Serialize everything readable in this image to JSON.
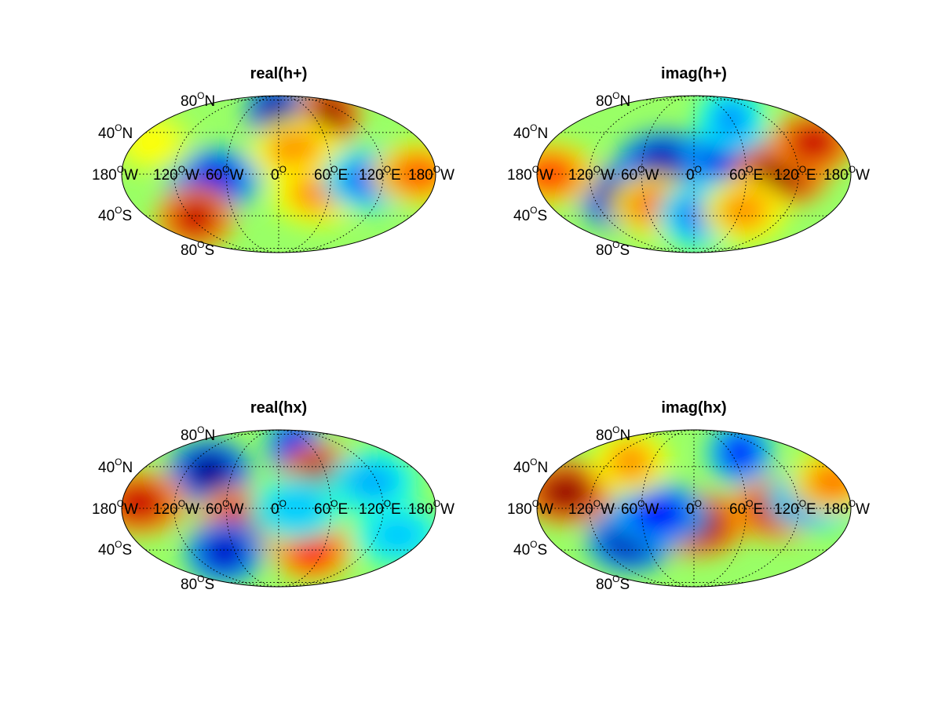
{
  "chart_data": [
    {
      "type": "heatmap",
      "projection": "mollweide",
      "title": "real(h+)",
      "colormap": "jet",
      "grid": true,
      "lat_labels": [
        {
          "deg": "80",
          "hemi": "N"
        },
        {
          "deg": "40",
          "hemi": "N"
        },
        {
          "deg": "40",
          "hemi": "S"
        },
        {
          "deg": "80",
          "hemi": "S"
        }
      ],
      "lon_labels": [
        {
          "deg": "180",
          "hemi": "W"
        },
        {
          "deg": "120",
          "hemi": "W"
        },
        {
          "deg": "60",
          "hemi": "W"
        },
        {
          "deg": "0",
          "hemi": ""
        },
        {
          "deg": "60",
          "hemi": "E"
        },
        {
          "deg": "120",
          "hemi": "E"
        },
        {
          "deg": "180",
          "hemi": "W"
        }
      ],
      "features": [
        {
          "lon": -5,
          "lat": 62,
          "v": -0.95
        },
        {
          "lon": 90,
          "lat": 60,
          "v": 0.95
        },
        {
          "lon": -75,
          "lat": -5,
          "v": -0.8
        },
        {
          "lon": -115,
          "lat": -42,
          "v": 0.85
        },
        {
          "lon": 20,
          "lat": 22,
          "v": 0.45
        },
        {
          "lon": 45,
          "lat": -18,
          "v": 0.45
        },
        {
          "lon": 105,
          "lat": -5,
          "v": -0.55
        },
        {
          "lon": 160,
          "lat": 0,
          "v": 0.55
        },
        {
          "lon": -160,
          "lat": 30,
          "v": 0.25
        }
      ]
    },
    {
      "type": "heatmap",
      "projection": "mollweide",
      "title": "imag(h+)",
      "colormap": "jet",
      "grid": true,
      "lat_labels": [
        {
          "deg": "80",
          "hemi": "N"
        },
        {
          "deg": "40",
          "hemi": "N"
        },
        {
          "deg": "40",
          "hemi": "S"
        },
        {
          "deg": "80",
          "hemi": "S"
        }
      ],
      "lon_labels": [
        {
          "deg": "180",
          "hemi": "W"
        },
        {
          "deg": "120",
          "hemi": "W"
        },
        {
          "deg": "60",
          "hemi": "W"
        },
        {
          "deg": "0",
          "hemi": ""
        },
        {
          "deg": "60",
          "hemi": "E"
        },
        {
          "deg": "120",
          "hemi": "E"
        },
        {
          "deg": "180",
          "hemi": "W"
        }
      ],
      "features": [
        {
          "lon": -85,
          "lat": -22,
          "v": -0.95
        },
        {
          "lon": -35,
          "lat": 10,
          "v": -0.9
        },
        {
          "lon": 40,
          "lat": 18,
          "v": -0.8
        },
        {
          "lon": 100,
          "lat": 0,
          "v": 0.95
        },
        {
          "lon": 150,
          "lat": 30,
          "v": 0.85
        },
        {
          "lon": -165,
          "lat": 0,
          "v": 0.6
        },
        {
          "lon": -50,
          "lat": -30,
          "v": 0.5
        },
        {
          "lon": 5,
          "lat": -40,
          "v": -0.5
        },
        {
          "lon": 65,
          "lat": -35,
          "v": 0.45
        },
        {
          "lon": 60,
          "lat": 55,
          "v": -0.45
        }
      ]
    },
    {
      "type": "heatmap",
      "projection": "mollweide",
      "title": "real(hx)",
      "colormap": "jet",
      "grid": true,
      "lat_labels": [
        {
          "deg": "80",
          "hemi": "N"
        },
        {
          "deg": "40",
          "hemi": "N"
        },
        {
          "deg": "40",
          "hemi": "S"
        },
        {
          "deg": "80",
          "hemi": "S"
        }
      ],
      "lon_labels": [
        {
          "deg": "180",
          "hemi": "W"
        },
        {
          "deg": "120",
          "hemi": "W"
        },
        {
          "deg": "60",
          "hemi": "W"
        },
        {
          "deg": "0",
          "hemi": ""
        },
        {
          "deg": "60",
          "hemi": "E"
        },
        {
          "deg": "120",
          "hemi": "E"
        },
        {
          "deg": "180",
          "hemi": "W"
        }
      ],
      "features": [
        {
          "lon": -90,
          "lat": 35,
          "v": -0.95
        },
        {
          "lon": 30,
          "lat": 62,
          "v": -0.8
        },
        {
          "lon": 55,
          "lat": 30,
          "v": 0.9
        },
        {
          "lon": -160,
          "lat": 5,
          "v": 0.85
        },
        {
          "lon": -40,
          "lat": -10,
          "v": 0.8
        },
        {
          "lon": 45,
          "lat": -40,
          "v": 0.75
        },
        {
          "lon": -75,
          "lat": -42,
          "v": -0.85
        },
        {
          "lon": 20,
          "lat": 0,
          "v": -0.35
        },
        {
          "lon": 115,
          "lat": 25,
          "v": -0.4
        },
        {
          "lon": 145,
          "lat": -25,
          "v": -0.35
        }
      ]
    },
    {
      "type": "heatmap",
      "projection": "mollweide",
      "title": "imag(hx)",
      "colormap": "jet",
      "grid": true,
      "lat_labels": [
        {
          "deg": "80",
          "hemi": "N"
        },
        {
          "deg": "40",
          "hemi": "N"
        },
        {
          "deg": "40",
          "hemi": "S"
        },
        {
          "deg": "80",
          "hemi": "S"
        }
      ],
      "lon_labels": [
        {
          "deg": "180",
          "hemi": "W"
        },
        {
          "deg": "120",
          "hemi": "W"
        },
        {
          "deg": "60",
          "hemi": "W"
        },
        {
          "deg": "0",
          "hemi": ""
        },
        {
          "deg": "60",
          "hemi": "E"
        },
        {
          "deg": "120",
          "hemi": "E"
        },
        {
          "deg": "180",
          "hemi": "W"
        }
      ],
      "features": [
        {
          "lon": -150,
          "lat": 15,
          "v": 0.95
        },
        {
          "lon": 5,
          "lat": -15,
          "v": 0.95
        },
        {
          "lon": 95,
          "lat": 0,
          "v": 0.85
        },
        {
          "lon": -80,
          "lat": -30,
          "v": -0.9
        },
        {
          "lon": -40,
          "lat": -5,
          "v": -0.75
        },
        {
          "lon": 75,
          "lat": 55,
          "v": -0.7
        },
        {
          "lon": 140,
          "lat": 10,
          "v": -0.55
        },
        {
          "lon": 170,
          "lat": 25,
          "v": 0.5
        },
        {
          "lon": -90,
          "lat": 45,
          "v": 0.45
        }
      ]
    }
  ]
}
